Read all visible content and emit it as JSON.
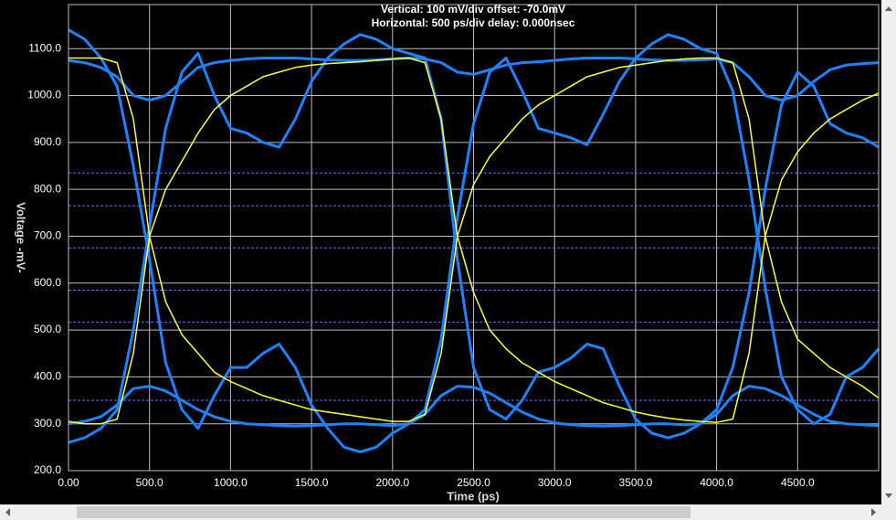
{
  "chart_data": {
    "type": "line",
    "title": "Vertical: 100 mV/div  offset: -70.0mV",
    "subtitle": "Horizontal: 500 ps/div  delay: 0.000nsec",
    "x_label": "Time  (ps)",
    "y_label": "Voltage  -mV-",
    "xlim": [
      0,
      5000
    ],
    "ylim": [
      200,
      1194
    ],
    "xticks": [
      {
        "value": 0,
        "label": "0.00"
      },
      {
        "value": 500,
        "label": "500.0"
      },
      {
        "value": 1000,
        "label": "1000.0"
      },
      {
        "value": 1500,
        "label": "1500.0"
      },
      {
        "value": 2000,
        "label": "2000.0"
      },
      {
        "value": 2500,
        "label": "2500.0"
      },
      {
        "value": 3000,
        "label": "3000.0"
      },
      {
        "value": 3500,
        "label": "3500.0"
      },
      {
        "value": 4000,
        "label": "4000.0"
      },
      {
        "value": 4500,
        "label": "4500.0"
      }
    ],
    "yticks": [
      {
        "value": 200,
        "label": "200.0"
      },
      {
        "value": 300,
        "label": "300.0"
      },
      {
        "value": 400,
        "label": "400.0"
      },
      {
        "value": 500,
        "label": "500.0"
      },
      {
        "value": 600,
        "label": "600.0"
      },
      {
        "value": 700,
        "label": "700.0"
      },
      {
        "value": 800,
        "label": "800.0"
      },
      {
        "value": 900,
        "label": "900.0"
      },
      {
        "value": 1000,
        "label": "1000.0"
      },
      {
        "value": 1100,
        "label": "1100.0"
      }
    ],
    "grid": true,
    "reference_lines": {
      "color": "#6a6aff",
      "values": [
        835,
        765,
        675,
        585,
        517,
        350
      ]
    },
    "x": [
      0,
      100,
      200,
      300,
      400,
      500,
      600,
      700,
      800,
      900,
      1000,
      1100,
      1200,
      1300,
      1400,
      1500,
      1600,
      1700,
      1800,
      1900,
      2000,
      2100,
      2200,
      2300,
      2400,
      2500,
      2600,
      2700,
      2800,
      2900,
      3000,
      3100,
      3200,
      3300,
      3400,
      3500,
      3600,
      3700,
      3800,
      3900,
      4000,
      4100,
      4200,
      4300,
      4400,
      4500,
      4600,
      4700,
      4800,
      4900,
      5000
    ],
    "series": [
      {
        "color": "#ffff33",
        "values": [
          1080,
          1080,
          1080,
          1070,
          950,
          700,
          560,
          490,
          450,
          410,
          390,
          375,
          360,
          350,
          340,
          330,
          325,
          320,
          315,
          310,
          305,
          305,
          320,
          450,
          700,
          810,
          870,
          910,
          950,
          980,
          1000,
          1020,
          1040,
          1050,
          1060,
          1065,
          1070,
          1075,
          1078,
          1080,
          1080,
          1070,
          950,
          700,
          560,
          480,
          450,
          420,
          400,
          380,
          355
        ]
      },
      {
        "color": "#ffff33",
        "values": [
          305,
          300,
          300,
          310,
          450,
          700,
          800,
          860,
          920,
          970,
          1000,
          1020,
          1040,
          1050,
          1060,
          1065,
          1068,
          1070,
          1072,
          1075,
          1078,
          1080,
          1070,
          950,
          700,
          580,
          500,
          460,
          430,
          410,
          390,
          375,
          360,
          345,
          335,
          325,
          318,
          312,
          308,
          305,
          303,
          310,
          450,
          700,
          820,
          880,
          920,
          950,
          970,
          990,
          1005
        ]
      },
      {
        "color": "#1e82ff",
        "values": [
          260,
          270,
          290,
          330,
          500,
          720,
          930,
          1050,
          1090,
          1000,
          930,
          920,
          900,
          890,
          950,
          1030,
          1080,
          1110,
          1130,
          1120,
          1100,
          1090,
          1080,
          950,
          650,
          420,
          330,
          310,
          350,
          410,
          420,
          440,
          470,
          460,
          380,
          310,
          280,
          270,
          280,
          300,
          330,
          420,
          580,
          800,
          980,
          1050,
          1020,
          940,
          920,
          910,
          890
        ]
      },
      {
        "color": "#1e82ff",
        "values": [
          1140,
          1120,
          1080,
          1020,
          850,
          650,
          430,
          330,
          290,
          360,
          420,
          420,
          450,
          470,
          420,
          340,
          290,
          250,
          240,
          250,
          280,
          300,
          330,
          480,
          740,
          940,
          1050,
          1080,
          1010,
          930,
          920,
          910,
          895,
          960,
          1030,
          1080,
          1110,
          1130,
          1120,
          1100,
          1090,
          1010,
          820,
          590,
          400,
          330,
          300,
          320,
          400,
          420,
          460
        ]
      },
      {
        "color": "#1e82ff",
        "values": [
          1075,
          1070,
          1060,
          1040,
          1000,
          990,
          1000,
          1030,
          1060,
          1070,
          1075,
          1078,
          1080,
          1080,
          1080,
          1078,
          1076,
          1075,
          1075,
          1076,
          1078,
          1080,
          1078,
          1070,
          1050,
          1045,
          1055,
          1065,
          1070,
          1072,
          1075,
          1078,
          1080,
          1080,
          1080,
          1078,
          1076,
          1075,
          1075,
          1076,
          1078,
          1070,
          1040,
          1000,
          990,
          1000,
          1030,
          1055,
          1065,
          1068,
          1070
        ]
      },
      {
        "color": "#1e82ff",
        "values": [
          300,
          305,
          315,
          340,
          375,
          380,
          370,
          350,
          330,
          315,
          305,
          300,
          298,
          296,
          295,
          296,
          298,
          300,
          300,
          298,
          296,
          300,
          320,
          360,
          380,
          378,
          365,
          345,
          325,
          310,
          302,
          298,
          296,
          295,
          296,
          298,
          300,
          300,
          298,
          300,
          320,
          360,
          380,
          375,
          360,
          340,
          320,
          305,
          300,
          298,
          296
        ]
      }
    ]
  }
}
